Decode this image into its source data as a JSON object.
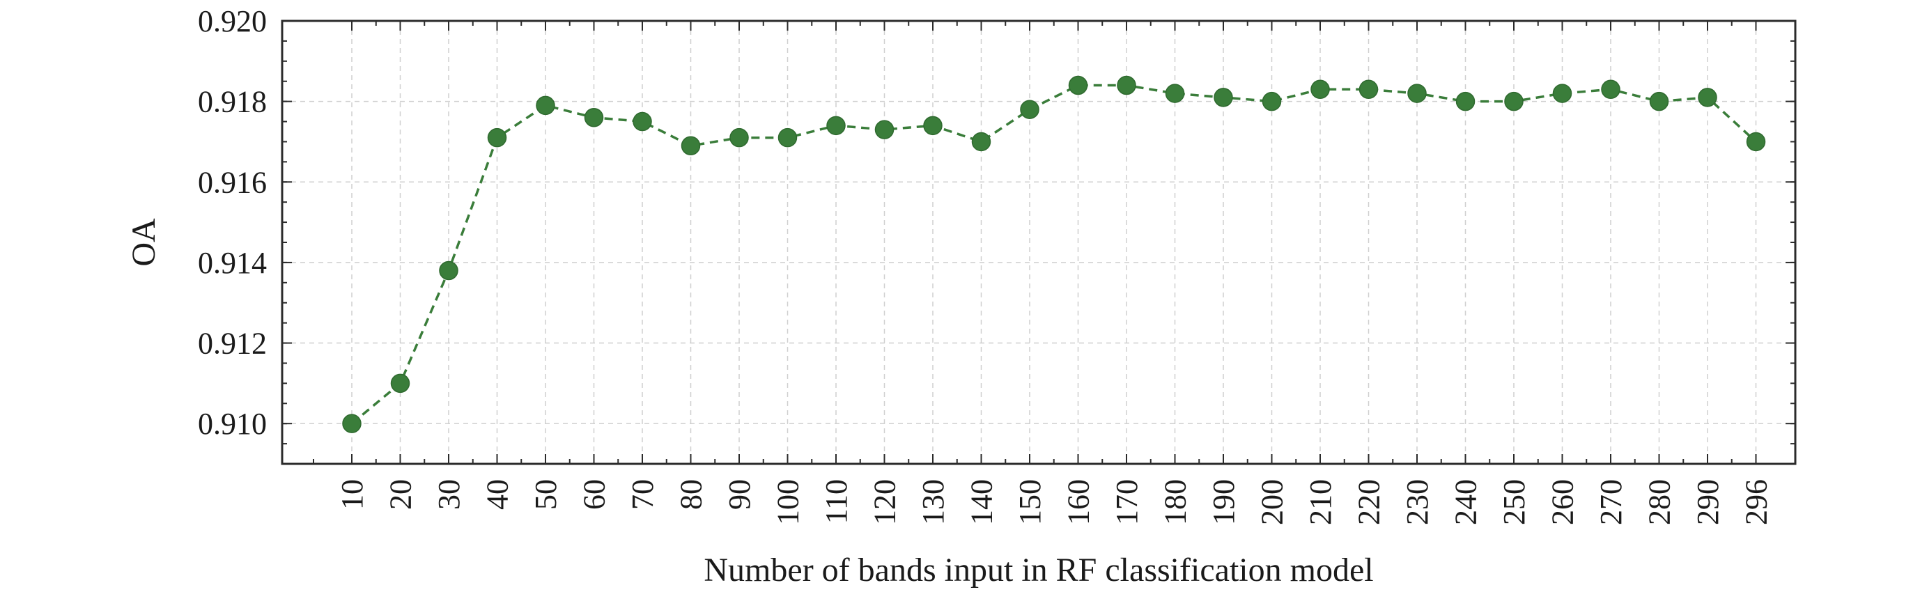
{
  "chart_data": {
    "type": "line",
    "xlabel": "Number of bands input in RF classification model",
    "ylabel": "OA",
    "x": [
      "10",
      "20",
      "30",
      "40",
      "50",
      "60",
      "70",
      "80",
      "90",
      "100",
      "110",
      "120",
      "130",
      "140",
      "150",
      "160",
      "170",
      "180",
      "190",
      "200",
      "210",
      "220",
      "230",
      "240",
      "250",
      "260",
      "270",
      "280",
      "290",
      "296"
    ],
    "series": [
      {
        "values": [
          0.91,
          0.911,
          0.9138,
          0.9171,
          0.9179,
          0.9176,
          0.9175,
          0.9169,
          0.9171,
          0.9171,
          0.9174,
          0.9173,
          0.9174,
          0.917,
          0.9178,
          0.9184,
          0.9184,
          0.9182,
          0.9181,
          0.918,
          0.9183,
          0.9183,
          0.9182,
          0.918,
          0.918,
          0.9182,
          0.9183,
          0.918,
          0.9181,
          0.917
        ],
        "color": "#3a7d3a",
        "line_style": "dashed",
        "marker": "circle"
      }
    ],
    "ylim": [
      0.909,
      0.92
    ],
    "yticks": [
      "0.910",
      "0.912",
      "0.914",
      "0.916",
      "0.918",
      "0.920"
    ],
    "grid": true,
    "legend": "none"
  }
}
